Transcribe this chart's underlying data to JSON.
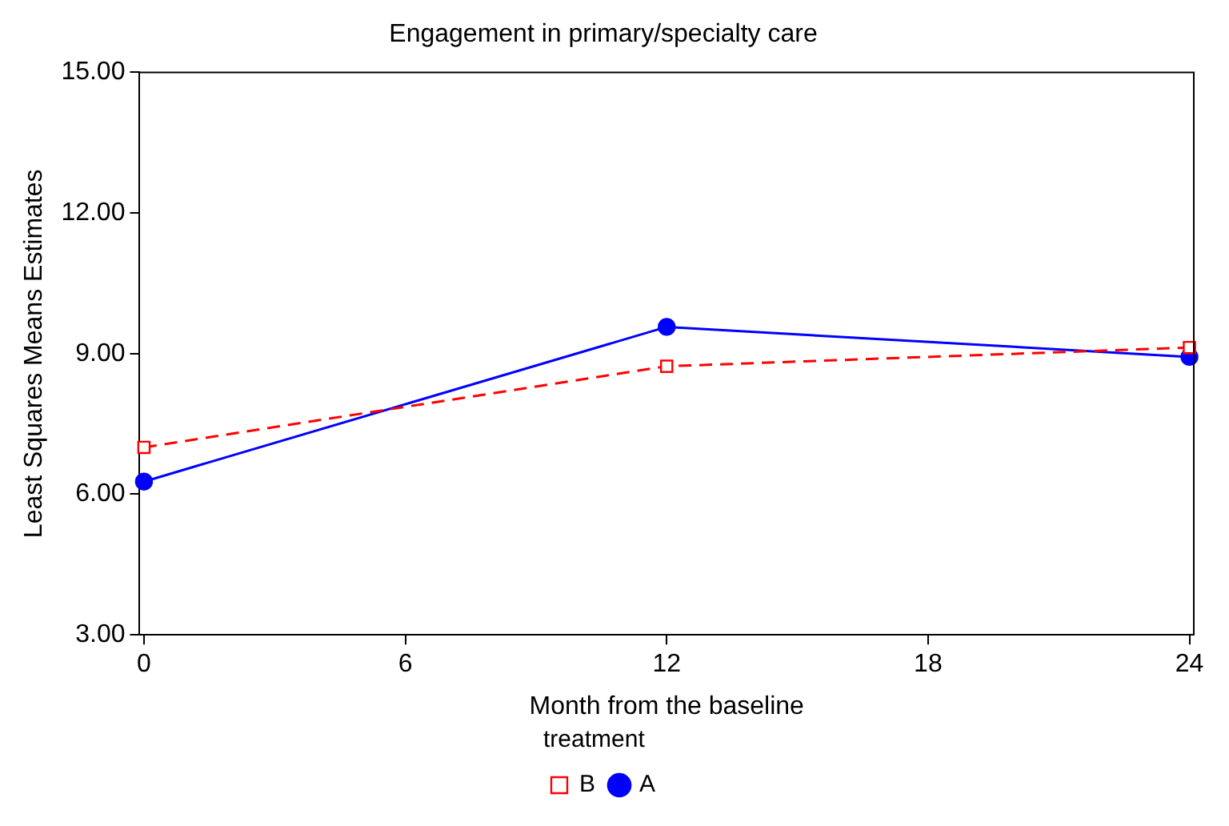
{
  "chart_data": {
    "type": "line",
    "title": "Engagement in primary/specialty care",
    "xlabel": "Month from the baseline",
    "ylabel": "Least Squares Means Estimates",
    "legend_title": "treatment",
    "x": [
      0,
      12,
      24
    ],
    "series": [
      {
        "name": "A",
        "color": "#0000ff",
        "values": [
          6.27,
          9.57,
          8.93
        ],
        "marker": "circle",
        "line_style": "solid"
      },
      {
        "name": "B",
        "color": "#ff0000",
        "values": [
          7.0,
          8.73,
          9.13
        ],
        "marker": "square",
        "line_style": "dashed"
      }
    ],
    "xlim": [
      -0.1,
      24.1
    ],
    "xticks": [
      0,
      6,
      12,
      18,
      24
    ],
    "ylim": [
      3,
      15
    ],
    "yticks": [
      {
        "value": 3,
        "label": "3.00"
      },
      {
        "value": 6,
        "label": "6.00"
      },
      {
        "value": 9,
        "label": "9.00"
      },
      {
        "value": 12,
        "label": "12.00"
      },
      {
        "value": 15,
        "label": "15.00"
      }
    ],
    "grid": false,
    "legend": "bottom"
  }
}
